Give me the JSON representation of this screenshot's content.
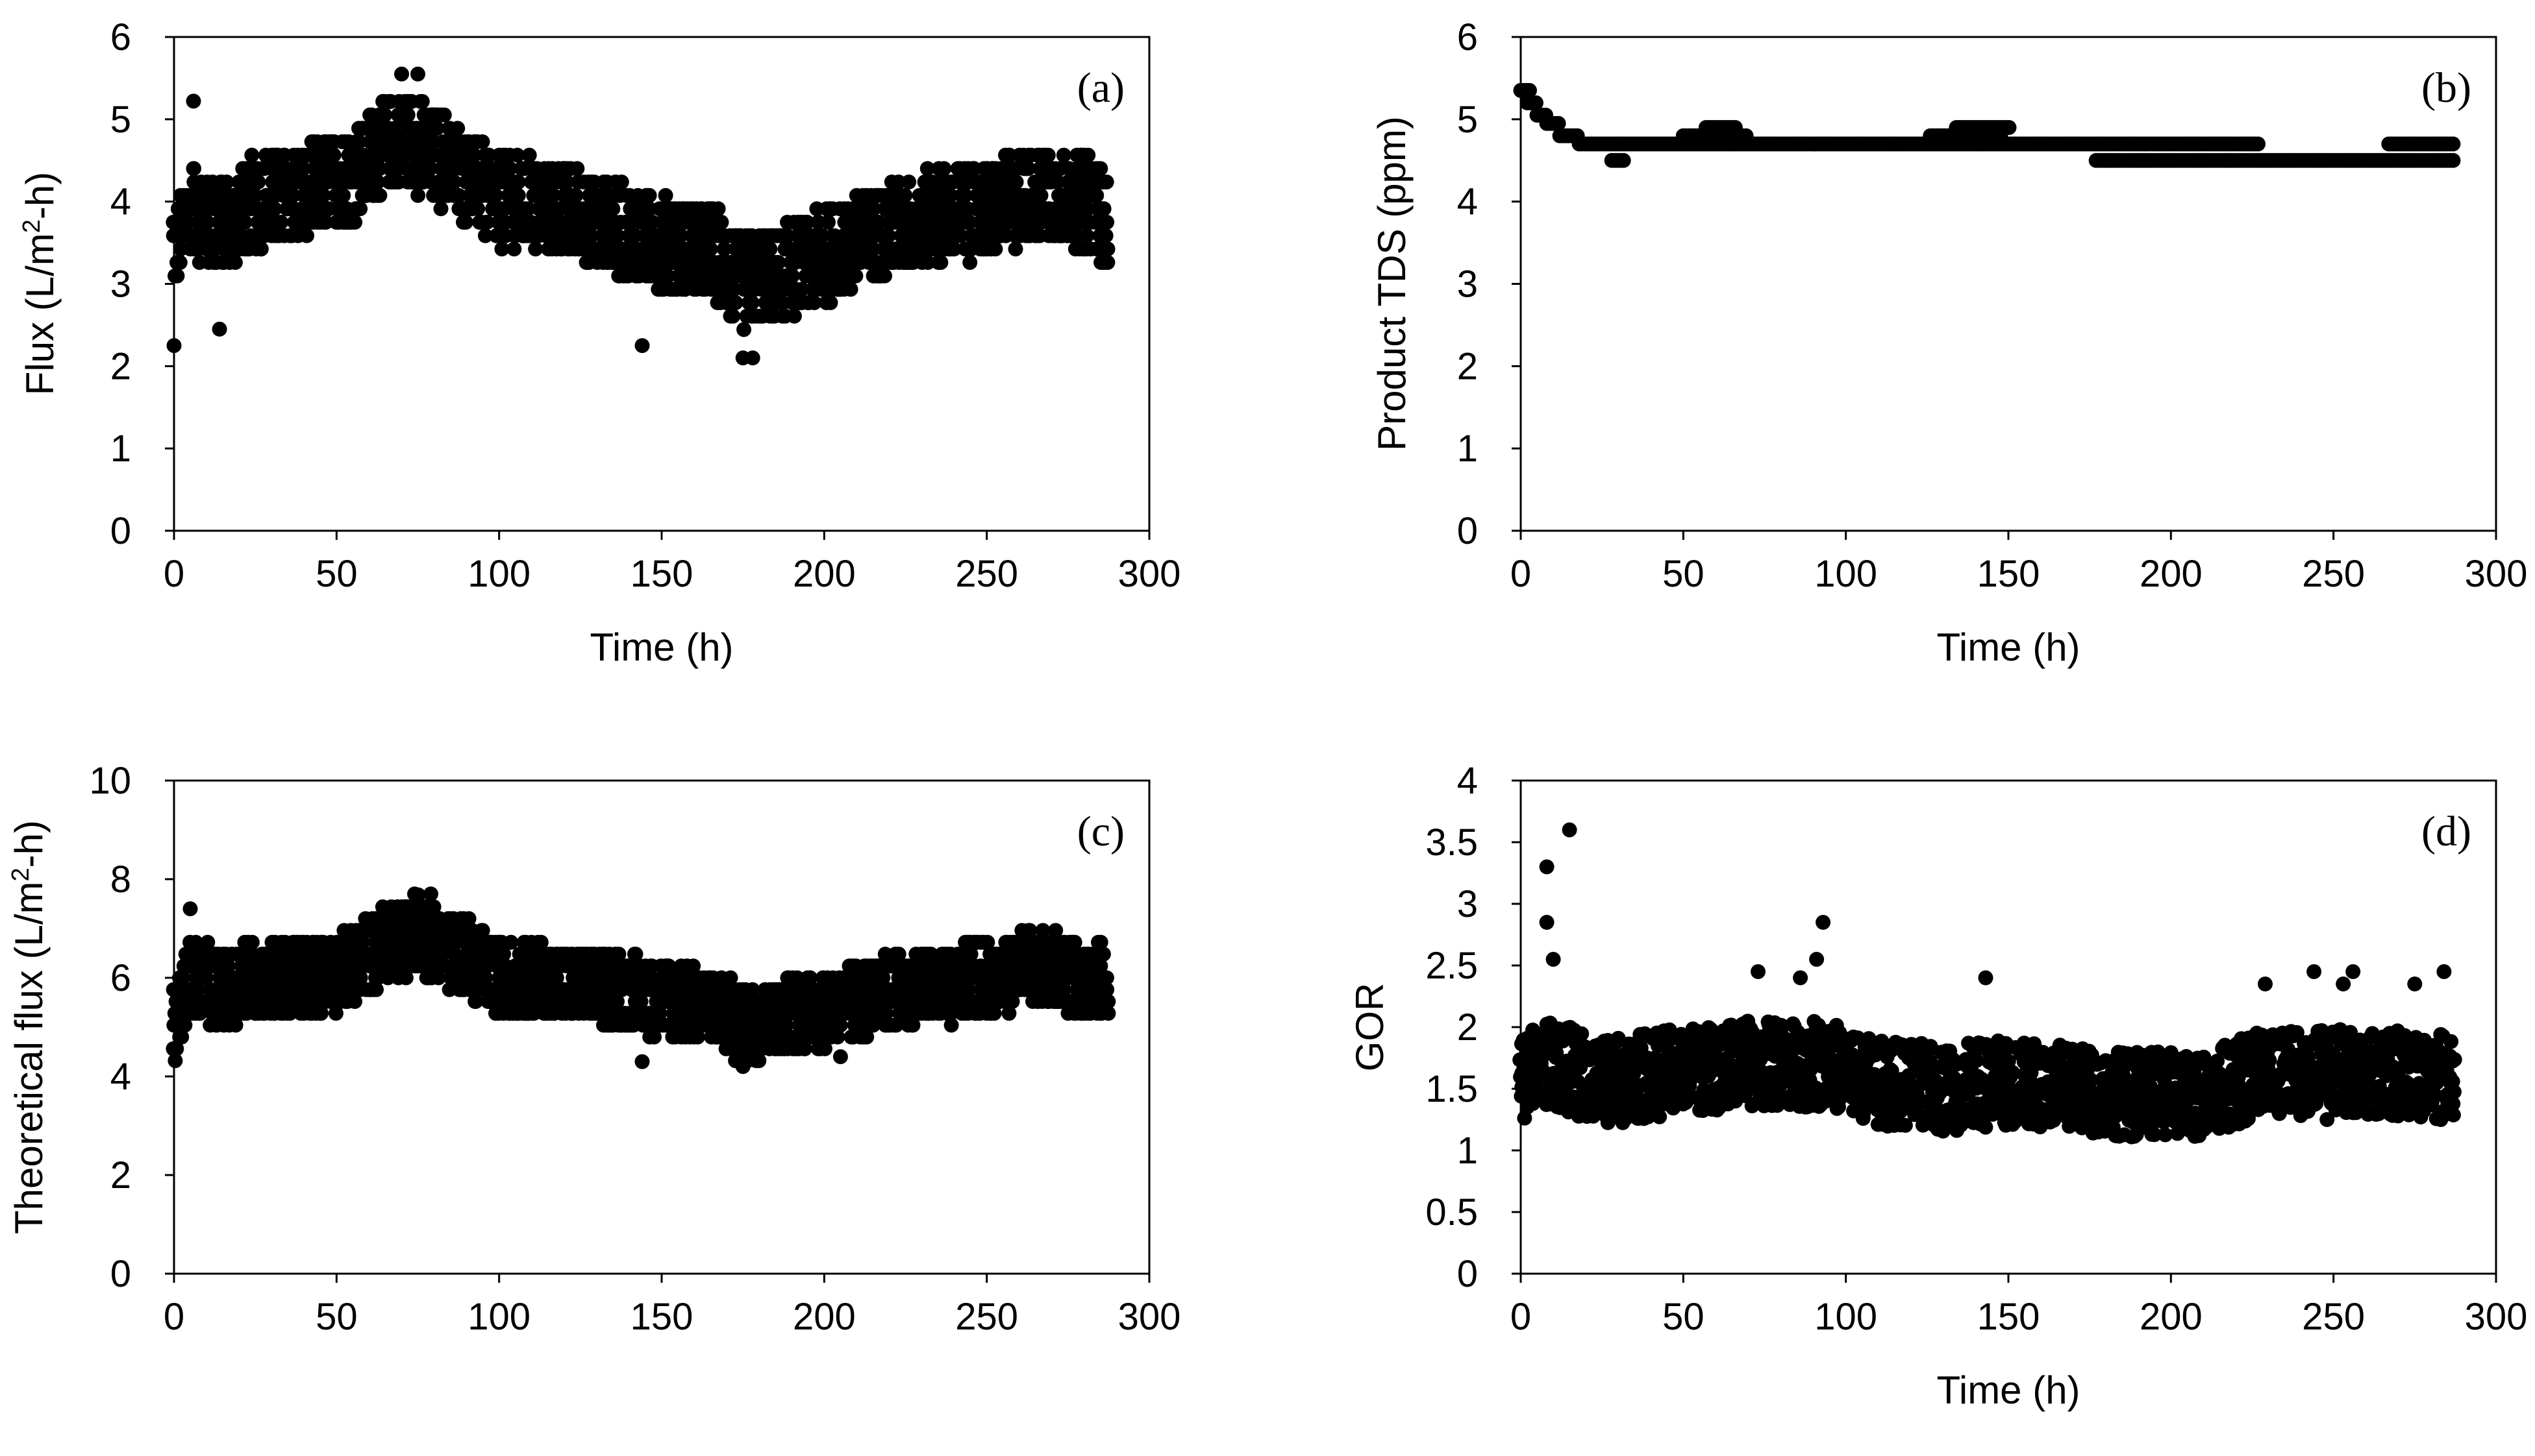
{
  "figure": {
    "layout": "2x2 scatter panels",
    "marker_color": "#000000"
  },
  "chart_data": [
    {
      "type": "scatter",
      "panel_label": "(a)",
      "xlabel": "Time (h)",
      "ylabel_parts": [
        "Flux (L/m",
        "2",
        "-h)"
      ],
      "xlim": [
        0,
        300
      ],
      "ylim": [
        0,
        6
      ],
      "xticks": [
        0,
        50,
        100,
        150,
        200,
        250,
        300
      ],
      "yticks": [
        0,
        1,
        2,
        3,
        4,
        5,
        6
      ],
      "x_range": [
        0,
        287
      ],
      "trend": [
        [
          0,
          3.4
        ],
        [
          5,
          3.9
        ],
        [
          15,
          3.7
        ],
        [
          25,
          4.0
        ],
        [
          40,
          4.1
        ],
        [
          55,
          4.3
        ],
        [
          65,
          4.7
        ],
        [
          75,
          4.7
        ],
        [
          90,
          4.3
        ],
        [
          100,
          4.0
        ],
        [
          120,
          3.9
        ],
        [
          140,
          3.6
        ],
        [
          150,
          3.5
        ],
        [
          165,
          3.4
        ],
        [
          175,
          3.0
        ],
        [
          190,
          3.2
        ],
        [
          205,
          3.4
        ],
        [
          215,
          3.6
        ],
        [
          230,
          3.8
        ],
        [
          250,
          3.9
        ],
        [
          265,
          4.1
        ],
        [
          280,
          4.0
        ],
        [
          287,
          3.8
        ]
      ],
      "spread": 0.55,
      "lines": false,
      "step": 0.163,
      "outliers": [
        [
          0,
          2.25
        ],
        [
          6,
          5.22
        ],
        [
          14,
          2.45
        ],
        [
          70,
          5.55
        ],
        [
          75,
          5.55
        ],
        [
          144,
          2.25
        ],
        [
          175,
          2.1
        ],
        [
          178,
          2.1
        ]
      ]
    },
    {
      "type": "scatter",
      "panel_label": "(b)",
      "xlabel": "Time (h)",
      "ylabel_parts": [
        "Product  TDS (ppm)"
      ],
      "xlim": [
        0,
        300
      ],
      "ylim": [
        0,
        6
      ],
      "xticks": [
        0,
        50,
        100,
        150,
        200,
        250,
        300
      ],
      "yticks": [
        0,
        1,
        2,
        3,
        4,
        5,
        6
      ],
      "x_range": [
        0,
        287
      ],
      "trend": [
        [
          0,
          5.35
        ],
        [
          3,
          5.2
        ],
        [
          8,
          5.0
        ],
        [
          12,
          4.85
        ],
        [
          18,
          4.7
        ],
        [
          287,
          4.7
        ]
      ],
      "spread": 0,
      "lines": true,
      "segments": [
        [
          0,
          3,
          5.35
        ],
        [
          2,
          5,
          5.2
        ],
        [
          5,
          8,
          5.05
        ],
        [
          8,
          12,
          4.95
        ],
        [
          12,
          18,
          4.8
        ],
        [
          18,
          126,
          4.7
        ],
        [
          28,
          32,
          4.5
        ],
        [
          50,
          62,
          4.8
        ],
        [
          57,
          66,
          4.9
        ],
        [
          63,
          70,
          4.8
        ],
        [
          126,
          148,
          4.8
        ],
        [
          134,
          151,
          4.9
        ],
        [
          126,
          227,
          4.7
        ],
        [
          177,
          287,
          4.5
        ],
        [
          267,
          287,
          4.7
        ]
      ]
    },
    {
      "type": "scatter",
      "panel_label": "(c)",
      "xlabel": "",
      "ylabel_parts": [
        "Theoretical flux (L/m",
        "2",
        "-h)"
      ],
      "xlim": [
        0,
        300
      ],
      "ylim": [
        0,
        10
      ],
      "xticks": [
        0,
        50,
        100,
        150,
        200,
        250,
        300
      ],
      "yticks": [
        0,
        2,
        4,
        6,
        8,
        10
      ],
      "x_range": [
        0,
        287
      ],
      "trend": [
        [
          0,
          5.0
        ],
        [
          5,
          6.0
        ],
        [
          15,
          5.8
        ],
        [
          25,
          6.0
        ],
        [
          40,
          6.0
        ],
        [
          55,
          6.2
        ],
        [
          65,
          6.7
        ],
        [
          75,
          6.9
        ],
        [
          90,
          6.4
        ],
        [
          100,
          6.0
        ],
        [
          120,
          5.9
        ],
        [
          140,
          5.7
        ],
        [
          150,
          5.6
        ],
        [
          165,
          5.4
        ],
        [
          175,
          5.0
        ],
        [
          190,
          5.3
        ],
        [
          205,
          5.4
        ],
        [
          215,
          5.6
        ],
        [
          230,
          5.8
        ],
        [
          250,
          6.0
        ],
        [
          265,
          6.2
        ],
        [
          280,
          6.0
        ],
        [
          287,
          5.9
        ]
      ],
      "spread": 0.75,
      "lines": false,
      "step": 0.24,
      "outliers": [
        [
          5,
          7.4
        ],
        [
          74,
          7.7
        ],
        [
          79,
          7.7
        ],
        [
          144,
          4.3
        ],
        [
          175,
          4.2
        ],
        [
          205,
          4.4
        ]
      ]
    },
    {
      "type": "scatter",
      "panel_label": "(d)",
      "xlabel": "Time (h)",
      "ylabel_parts": [
        "GOR"
      ],
      "xlim": [
        0,
        300
      ],
      "ylim": [
        0,
        4
      ],
      "xticks": [
        0,
        50,
        100,
        150,
        200,
        250,
        300
      ],
      "yticks": [
        0,
        0.5,
        1,
        1.5,
        2,
        2.5,
        3,
        3.5,
        4
      ],
      "x_range": [
        0,
        287
      ],
      "trend": [
        [
          0,
          1.6
        ],
        [
          10,
          1.7
        ],
        [
          25,
          1.55
        ],
        [
          50,
          1.65
        ],
        [
          70,
          1.7
        ],
        [
          95,
          1.7
        ],
        [
          110,
          1.55
        ],
        [
          130,
          1.5
        ],
        [
          150,
          1.55
        ],
        [
          170,
          1.5
        ],
        [
          190,
          1.45
        ],
        [
          210,
          1.45
        ],
        [
          225,
          1.6
        ],
        [
          250,
          1.65
        ],
        [
          287,
          1.6
        ]
      ],
      "spread": 0.35,
      "lines": false,
      "step": 0,
      "outliers": [
        [
          8,
          3.3
        ],
        [
          15,
          3.6
        ],
        [
          8,
          2.85
        ],
        [
          10,
          2.55
        ],
        [
          93,
          2.85
        ],
        [
          91,
          2.55
        ],
        [
          73,
          2.45
        ],
        [
          86,
          2.4
        ],
        [
          143,
          2.4
        ],
        [
          229,
          2.35
        ],
        [
          244,
          2.45
        ],
        [
          253,
          2.35
        ],
        [
          256,
          2.45
        ],
        [
          284,
          2.45
        ],
        [
          275,
          2.35
        ],
        [
          248,
          1.25
        ],
        [
          283,
          1.25
        ]
      ]
    }
  ]
}
